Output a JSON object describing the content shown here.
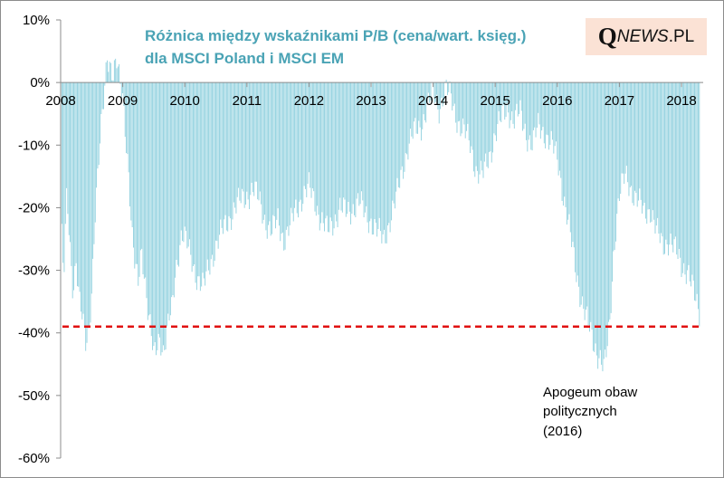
{
  "colors": {
    "bars": "#8fd0de",
    "threshold": "#e01010",
    "title": "#4aa3b5",
    "logo_bg": "#fbe2d5"
  },
  "logo": {
    "q": "Q",
    "news": "NEWS",
    "pl": ".PL"
  },
  "chart_data": {
    "type": "bar",
    "title_lines": [
      "Różnica między wskaźnikami P/B (cena/wart. księg.)",
      "dla MSCI Poland i MSCI EM"
    ],
    "xlabel": "",
    "ylabel": "",
    "ylim": [
      -60,
      10
    ],
    "yticks": [
      10,
      0,
      -10,
      -20,
      -30,
      -40,
      -50,
      -60
    ],
    "ytick_labels": [
      "10%",
      "0%",
      "-10%",
      "-20%",
      "-30%",
      "-40%",
      "-50%",
      "-60%"
    ],
    "xlim": [
      2008.0,
      2018.3
    ],
    "xticks": [
      2008,
      2009,
      2010,
      2011,
      2012,
      2013,
      2014,
      2015,
      2016,
      2017,
      2018
    ],
    "xtick_labels": [
      "2008",
      "2009",
      "2010",
      "2011",
      "2012",
      "2013",
      "2014",
      "2015",
      "2016",
      "2017",
      "2018"
    ],
    "grid": false,
    "legend": "none",
    "threshold_line": {
      "value": -39,
      "style": "dashed"
    },
    "annotation": {
      "lines": [
        "Apogeum obaw",
        "politycznych",
        "(2016)"
      ]
    },
    "series": [
      {
        "frequency": "weekly",
        "anchors": [
          [
            2008.0,
            -20
          ],
          [
            2008.05,
            -32
          ],
          [
            2008.1,
            -18
          ],
          [
            2008.15,
            -26
          ],
          [
            2008.2,
            -33
          ],
          [
            2008.25,
            -28
          ],
          [
            2008.3,
            -35
          ],
          [
            2008.35,
            -38
          ],
          [
            2008.4,
            -42
          ],
          [
            2008.45,
            -40
          ],
          [
            2008.5,
            -33
          ],
          [
            2008.55,
            -22
          ],
          [
            2008.6,
            -15
          ],
          [
            2008.65,
            -8
          ],
          [
            2008.7,
            -2
          ],
          [
            2008.75,
            5
          ],
          [
            2008.8,
            3
          ],
          [
            2008.85,
            1
          ],
          [
            2008.9,
            3
          ],
          [
            2008.95,
            0
          ],
          [
            2009.0,
            -2
          ],
          [
            2009.05,
            -8
          ],
          [
            2009.1,
            -15
          ],
          [
            2009.15,
            -25
          ],
          [
            2009.2,
            -30
          ],
          [
            2009.25,
            -32
          ],
          [
            2009.3,
            -26
          ],
          [
            2009.35,
            -30
          ],
          [
            2009.4,
            -36
          ],
          [
            2009.45,
            -40
          ],
          [
            2009.5,
            -44
          ],
          [
            2009.55,
            -42
          ],
          [
            2009.6,
            -40
          ],
          [
            2009.65,
            -43
          ],
          [
            2009.7,
            -41
          ],
          [
            2009.75,
            -38
          ],
          [
            2009.8,
            -36
          ],
          [
            2009.85,
            -30
          ],
          [
            2009.9,
            -27
          ],
          [
            2009.95,
            -24
          ],
          [
            2010.0,
            -25
          ],
          [
            2010.1,
            -28
          ],
          [
            2010.2,
            -31
          ],
          [
            2010.3,
            -33
          ],
          [
            2010.4,
            -29
          ],
          [
            2010.5,
            -26
          ],
          [
            2010.6,
            -24
          ],
          [
            2010.7,
            -22
          ],
          [
            2010.8,
            -20
          ],
          [
            2010.9,
            -19
          ],
          [
            2011.0,
            -18
          ],
          [
            2011.1,
            -17
          ],
          [
            2011.2,
            -19
          ],
          [
            2011.3,
            -22
          ],
          [
            2011.4,
            -24
          ],
          [
            2011.5,
            -22
          ],
          [
            2011.6,
            -25
          ],
          [
            2011.7,
            -23
          ],
          [
            2011.8,
            -20
          ],
          [
            2011.9,
            -18
          ],
          [
            2012.0,
            -17
          ],
          [
            2012.1,
            -19
          ],
          [
            2012.2,
            -22
          ],
          [
            2012.3,
            -24
          ],
          [
            2012.4,
            -22
          ],
          [
            2012.5,
            -20
          ],
          [
            2012.6,
            -21
          ],
          [
            2012.7,
            -20
          ],
          [
            2012.8,
            -19
          ],
          [
            2012.9,
            -21
          ],
          [
            2013.0,
            -22
          ],
          [
            2013.1,
            -24
          ],
          [
            2013.2,
            -25
          ],
          [
            2013.3,
            -22
          ],
          [
            2013.4,
            -19
          ],
          [
            2013.5,
            -14
          ],
          [
            2013.6,
            -10
          ],
          [
            2013.7,
            -8
          ],
          [
            2013.8,
            -7
          ],
          [
            2013.9,
            -4
          ],
          [
            2014.0,
            -2
          ],
          [
            2014.1,
            -4
          ],
          [
            2014.2,
            -1
          ],
          [
            2014.3,
            -3
          ],
          [
            2014.4,
            -6
          ],
          [
            2014.5,
            -8
          ],
          [
            2014.6,
            -10
          ],
          [
            2014.7,
            -14
          ],
          [
            2014.8,
            -15
          ],
          [
            2014.9,
            -12
          ],
          [
            2015.0,
            -8
          ],
          [
            2015.1,
            -6
          ],
          [
            2015.2,
            -4
          ],
          [
            2015.3,
            -6
          ],
          [
            2015.4,
            -5
          ],
          [
            2015.5,
            -8
          ],
          [
            2015.6,
            -10
          ],
          [
            2015.7,
            -7
          ],
          [
            2015.8,
            -8
          ],
          [
            2015.9,
            -10
          ],
          [
            2016.0,
            -12
          ],
          [
            2016.1,
            -18
          ],
          [
            2016.2,
            -24
          ],
          [
            2016.3,
            -30
          ],
          [
            2016.4,
            -35
          ],
          [
            2016.5,
            -39
          ],
          [
            2016.6,
            -42
          ],
          [
            2016.7,
            -44
          ],
          [
            2016.75,
            -46
          ],
          [
            2016.8,
            -43
          ],
          [
            2016.85,
            -38
          ],
          [
            2016.9,
            -28
          ],
          [
            2016.95,
            -22
          ],
          [
            2017.0,
            -18
          ],
          [
            2017.1,
            -15
          ],
          [
            2017.2,
            -17
          ],
          [
            2017.3,
            -19
          ],
          [
            2017.4,
            -21
          ],
          [
            2017.5,
            -20
          ],
          [
            2017.6,
            -24
          ],
          [
            2017.7,
            -26
          ],
          [
            2017.8,
            -25
          ],
          [
            2017.9,
            -27
          ],
          [
            2018.0,
            -29
          ],
          [
            2018.1,
            -30
          ],
          [
            2018.2,
            -34
          ],
          [
            2018.3,
            -37
          ]
        ]
      }
    ]
  }
}
